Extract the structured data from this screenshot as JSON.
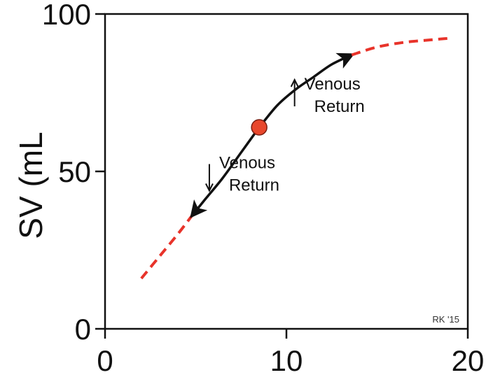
{
  "chart_data": {
    "type": "line",
    "title": "",
    "xlabel": "",
    "ylabel": "SV (mL",
    "xlim": [
      0,
      20
    ],
    "ylim": [
      0,
      100
    ],
    "x_ticks": [
      "0",
      "10",
      "20"
    ],
    "y_ticks": [
      "0",
      "50",
      "100"
    ],
    "grid": false,
    "series": [
      {
        "style": "dashed",
        "color": "#e8332a",
        "x": [
          2.0,
          3.0,
          4.0,
          4.8
        ],
        "y": [
          16,
          23,
          30,
          36
        ]
      },
      {
        "style": "solid-arrow",
        "color": "#111111",
        "arrow": "end",
        "x": [
          8.5,
          7.5,
          6.5,
          5.5,
          4.8
        ],
        "y": [
          64,
          56,
          48,
          41,
          36
        ]
      },
      {
        "style": "solid-arrow",
        "color": "#111111",
        "arrow": "end",
        "x": [
          8.5,
          9.5,
          10.5,
          11.5,
          12.5,
          13.6
        ],
        "y": [
          64,
          71,
          76,
          80,
          84,
          87
        ]
      },
      {
        "style": "dashed",
        "color": "#e8332a",
        "x": [
          13.6,
          15,
          16.5,
          18,
          19
        ],
        "y": [
          87,
          89.5,
          91,
          91.8,
          92.3
        ]
      }
    ],
    "points": [
      {
        "x": 8.5,
        "y": 64,
        "color": "#e8472c"
      }
    ],
    "annotations": [
      {
        "text": "Venous\nReturn",
        "arrow": "up",
        "x": 11.3,
        "y": 72
      },
      {
        "text": "Venous\nReturn",
        "arrow": "down",
        "x": 6.6,
        "y": 47
      }
    ],
    "credit": "RK '15"
  }
}
